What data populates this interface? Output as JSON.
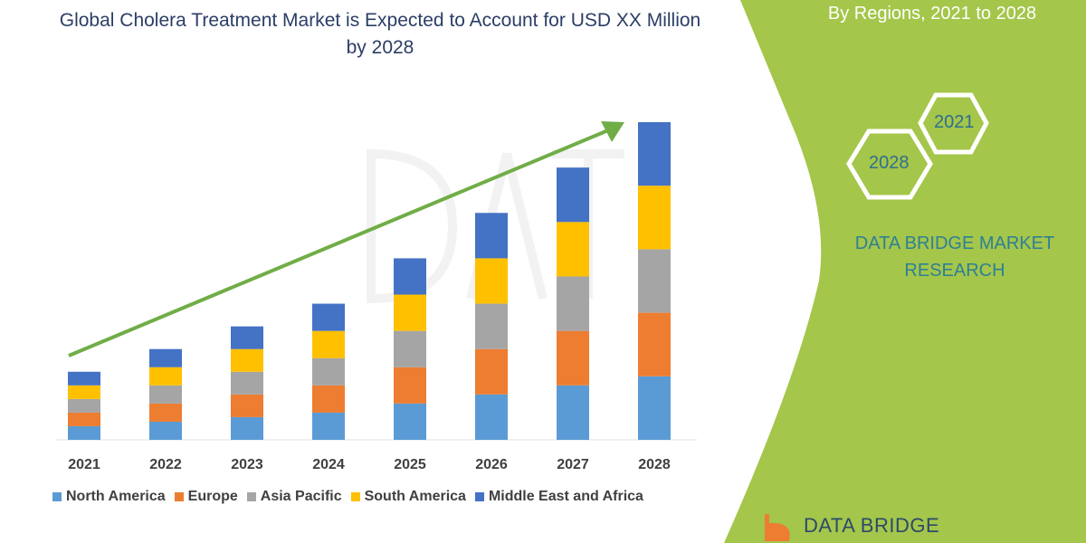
{
  "title": "Global Cholera Treatment Market is Expected to Account for USD XX Million by 2028",
  "side_panel": {
    "subtitle": "By Regions, 2021 to 2028",
    "hex_years": [
      "2021",
      "2028"
    ],
    "brand": "DATA BRIDGE MARKET RESEARCH",
    "logo_text": "DATA BRIDGE",
    "panel_color": "#a4c64a"
  },
  "chart_data": {
    "type": "bar",
    "stacked": true,
    "title": "Global Cholera Treatment Market is Expected to Account for USD XX Million by 2028",
    "xlabel": "",
    "ylabel": "",
    "y_axis_shown": false,
    "grid": false,
    "legend_position": "bottom",
    "categories": [
      "2021",
      "2022",
      "2023",
      "2024",
      "2025",
      "2026",
      "2027",
      "2028"
    ],
    "series": [
      {
        "name": "North America",
        "color": "#5b9bd5",
        "values": [
          15,
          20,
          25,
          30,
          40,
          50,
          60,
          70
        ]
      },
      {
        "name": "Europe",
        "color": "#ed7d31",
        "values": [
          15,
          20,
          25,
          30,
          40,
          50,
          60,
          70
        ]
      },
      {
        "name": "Asia Pacific",
        "color": "#a5a5a5",
        "values": [
          15,
          20,
          25,
          30,
          40,
          50,
          60,
          70
        ]
      },
      {
        "name": "South America",
        "color": "#ffc000",
        "values": [
          15,
          20,
          25,
          30,
          40,
          50,
          60,
          70
        ]
      },
      {
        "name": "Middle East and Africa",
        "color": "#4472c4",
        "values": [
          15,
          20,
          25,
          30,
          40,
          50,
          60,
          70
        ]
      }
    ],
    "trend_arrow_color": "#70ad47"
  }
}
